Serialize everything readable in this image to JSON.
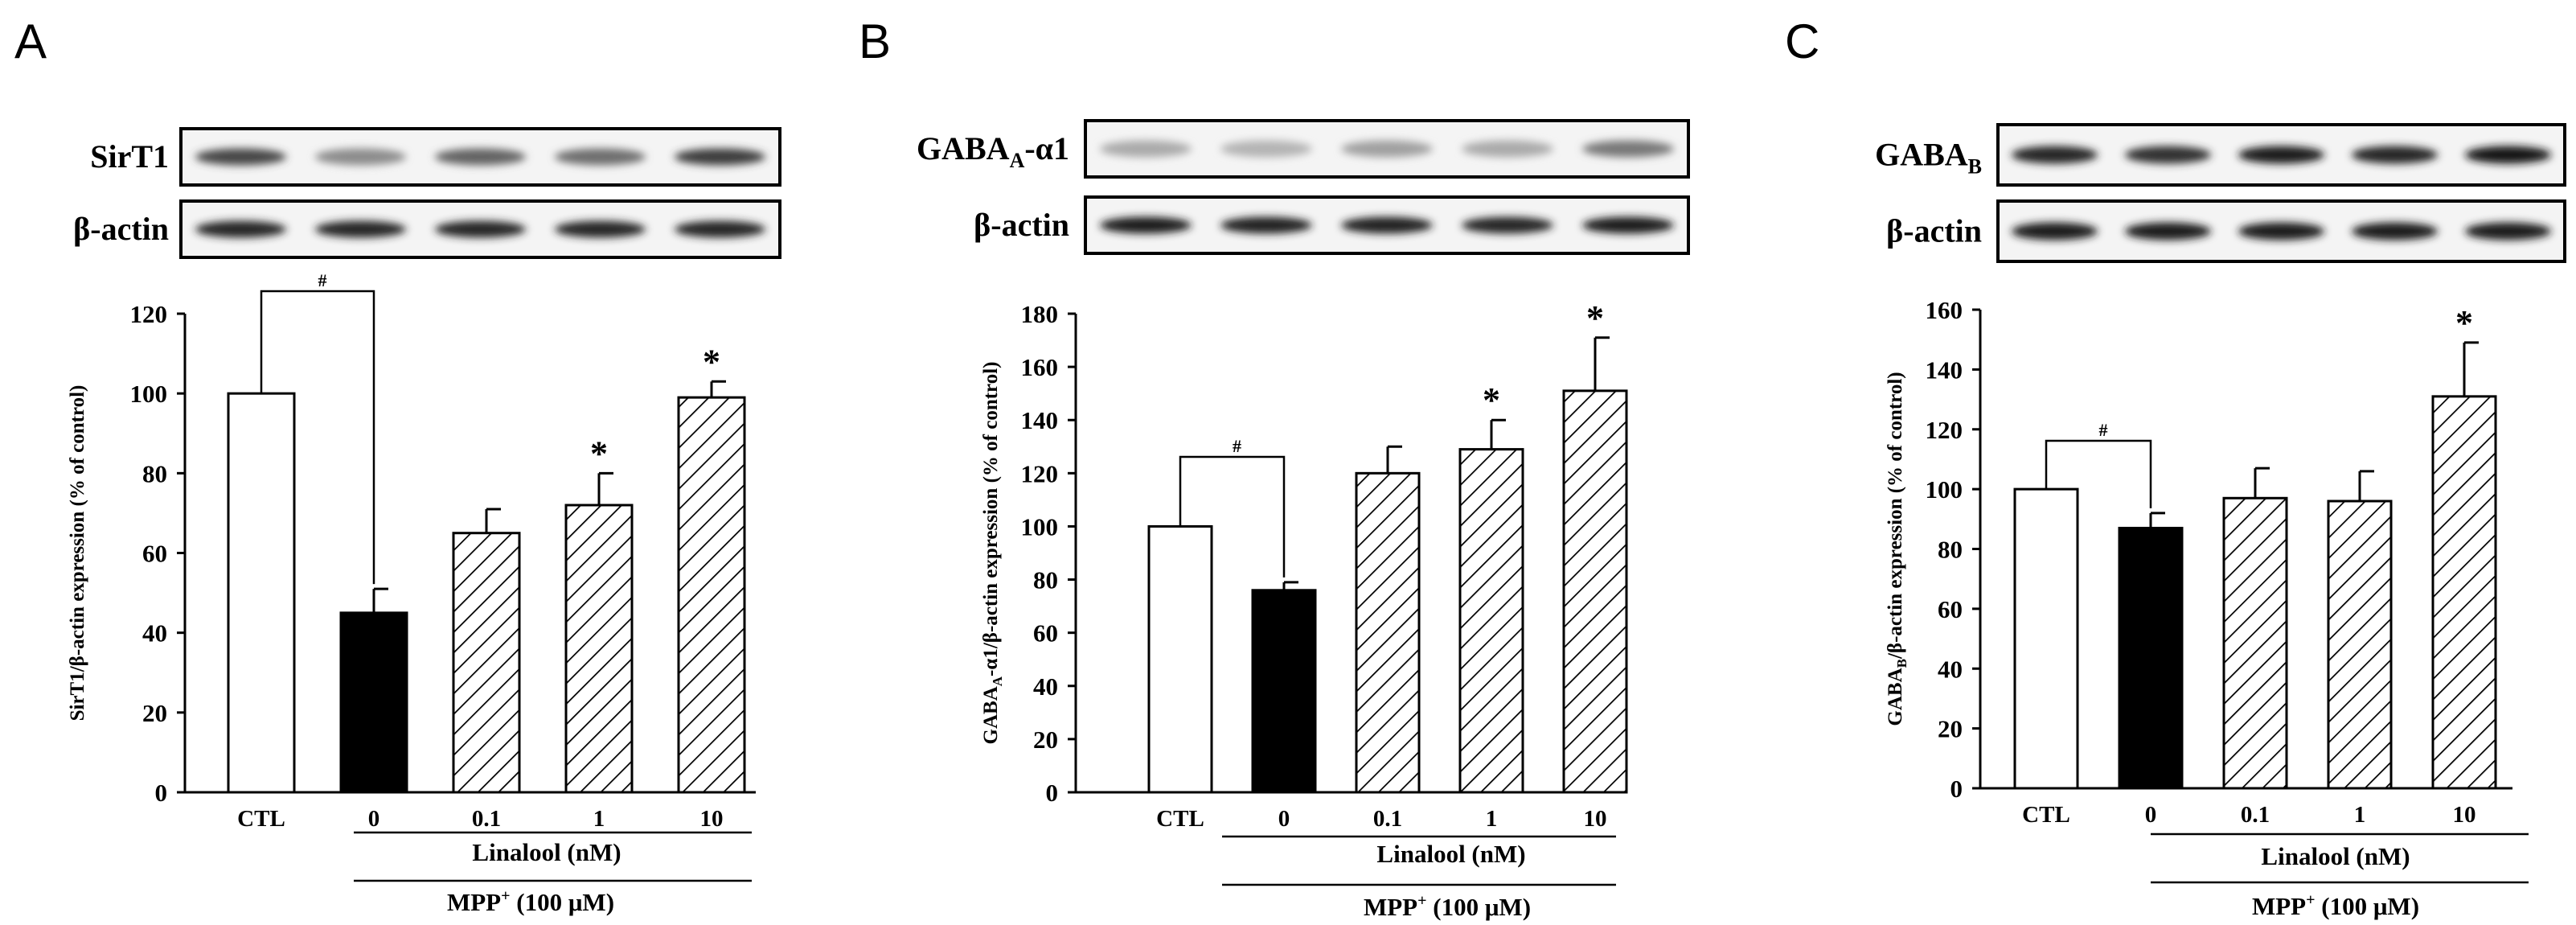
{
  "chart_data": [
    {
      "panel": "A",
      "type": "bar",
      "blot_labels": [
        "SirT1",
        "β-actin"
      ],
      "categories": [
        "CTL",
        "0",
        "0.1",
        "1",
        "10"
      ],
      "values": [
        100,
        45,
        65,
        72,
        99
      ],
      "errors": [
        0,
        6,
        6,
        8,
        4
      ],
      "bar_styles": [
        "open",
        "solid",
        "hatched",
        "hatched",
        "hatched"
      ],
      "significance": [
        "",
        "",
        "",
        "*",
        "*"
      ],
      "bracket_label": "#",
      "ylabel_parts": [
        "SirT1/β-actin expression (% of control)"
      ],
      "ylim": [
        0,
        120
      ],
      "yticks": [
        0,
        20,
        40,
        60,
        80,
        100,
        120
      ],
      "group_label": "Linalool (nM)",
      "treatment_label": [
        "MPP",
        "+",
        " (100 μM)"
      ],
      "band_intensity": [
        0.75,
        0.4,
        0.6,
        0.55,
        0.8
      ],
      "actin_intensity": [
        0.9,
        0.9,
        0.9,
        0.9,
        0.9
      ]
    },
    {
      "panel": "B",
      "type": "bar",
      "blot_labels": [
        "GABA_A-α1",
        "β-actin"
      ],
      "categories": [
        "CTL",
        "0",
        "0.1",
        "1",
        "10"
      ],
      "values": [
        100,
        76,
        120,
        129,
        151
      ],
      "errors": [
        0,
        3,
        10,
        11,
        20
      ],
      "bar_styles": [
        "open",
        "solid",
        "hatched",
        "hatched",
        "hatched"
      ],
      "significance": [
        "",
        "",
        "",
        "*",
        "*"
      ],
      "bracket_label": "#",
      "ylabel_parts": [
        "GABA",
        "A",
        "-α1/β-actin expression (% of control)"
      ],
      "ylim": [
        0,
        180
      ],
      "yticks": [
        0,
        20,
        40,
        60,
        80,
        100,
        120,
        140,
        160,
        180
      ],
      "group_label": "Linalool (nM)",
      "treatment_label": [
        "MPP",
        "+",
        " (100 μM)"
      ],
      "band_intensity": [
        0.25,
        0.2,
        0.3,
        0.25,
        0.5
      ],
      "actin_intensity": [
        0.95,
        0.92,
        0.92,
        0.9,
        0.95
      ]
    },
    {
      "panel": "C",
      "type": "bar",
      "blot_labels": [
        "GABA_B",
        "β-actin"
      ],
      "categories": [
        "CTL",
        "0",
        "0.1",
        "1",
        "10"
      ],
      "values": [
        100,
        87,
        97,
        96,
        131
      ],
      "errors": [
        0,
        5,
        10,
        10,
        18
      ],
      "bar_styles": [
        "open",
        "solid",
        "hatched",
        "hatched",
        "hatched"
      ],
      "significance": [
        "",
        "",
        "",
        "",
        "*"
      ],
      "bracket_label": "#",
      "ylabel_parts": [
        "GABA",
        "B",
        "/β-actin expression (% of control)"
      ],
      "ylim": [
        0,
        160
      ],
      "yticks": [
        0,
        20,
        40,
        60,
        80,
        100,
        120,
        140,
        160
      ],
      "group_label": "Linalool (nM)",
      "treatment_label": [
        "MPP",
        "+",
        " (100 μM)"
      ],
      "band_intensity": [
        0.9,
        0.85,
        0.95,
        0.9,
        1.0
      ],
      "actin_intensity": [
        0.95,
        0.95,
        0.95,
        0.95,
        0.95
      ]
    }
  ]
}
